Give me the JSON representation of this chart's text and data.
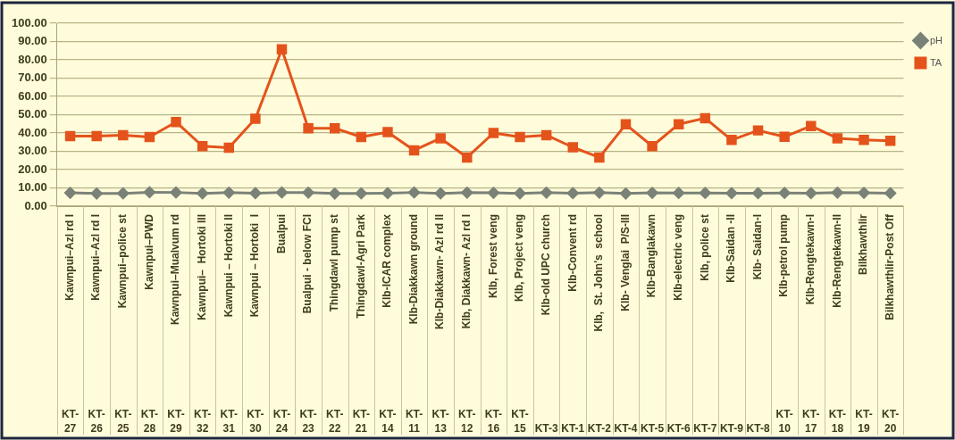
{
  "chart_data": {
    "type": "line",
    "categories": [
      "Kawnpui–Azl rd I\nKT-27",
      "Kawnpui–Azl rd I\nKT-26",
      "Kawnpui–police st\nKT-25",
      "Kawnpui–PWD\nKT-28",
      "Kawnpui–Mualvum rd\nKT-29",
      "Kawnpui–  Hortoki III\nKT-32",
      "Kawnpui – Hortoki II\nKT-31",
      "Kawnpui – Hortoki  I\nKT-30",
      "Bualpui\nKT-24",
      "Bualpui - below FCI\nKT-23",
      "Thingdawl pump st\nKT-22",
      "Thingdawl-Agri Park\nKT-21",
      "Klb-ICAR complex\nKT-14",
      "Klb-Diakkawn ground\nKT-11",
      "Klb-Diakkawn- Azl rd II\nKT-13",
      "Klb, Diakkawn- Azl rd I\nKT-12",
      "Klb, Forest veng\nKT-16",
      "Klb, Project veng\nKT-15",
      "Klb-old UPC church\nKT-3",
      "Klb-Convent rd\nKT-1",
      "Klb,  St. John's  school\nKT-2",
      "Klb- Venglai  P/S-III\nKT-4",
      "Klb-Banglakawn\nKT-5",
      "Klb-electric veng\nKT-6",
      "Klb, police st\nKT-7",
      "Klb-Saidan -II\nKT-9",
      "Klb- Saidan-I\nKT-8",
      "Klb-petrol pump\nKT-10",
      "Klb-Rengtekawn-I\nKT-17",
      "Klb-Rengtekawn-II\nKT-18",
      "Bilkhawthlir\nKT-19",
      "Bilkhawthlir-Post Off\nKT-20"
    ],
    "series": [
      {
        "name": "pH",
        "color": "#7a8278",
        "marker": "diamond",
        "values": [
          7.3,
          6.9,
          7.0,
          7.6,
          7.5,
          7.0,
          7.4,
          7.1,
          7.5,
          7.4,
          6.9,
          7.0,
          7.1,
          7.5,
          7.0,
          7.4,
          7.3,
          7.0,
          7.4,
          7.1,
          7.4,
          6.9,
          7.3,
          7.2,
          7.2,
          7.1,
          7.1,
          7.2,
          7.1,
          7.4,
          7.3,
          7.1
        ]
      },
      {
        "name": "TA",
        "color": "#e4531b",
        "marker": "square",
        "values": [
          38.3,
          38.3,
          38.8,
          37.8,
          46.0,
          32.8,
          31.9,
          47.8,
          85.7,
          42.6,
          42.6,
          37.8,
          40.5,
          30.5,
          37.1,
          26.6,
          40.0,
          37.8,
          38.8,
          32.2,
          26.6,
          44.7,
          32.8,
          44.8,
          48.1,
          36.2,
          41.4,
          37.9,
          43.8,
          37.1,
          36.2,
          35.7
        ]
      }
    ],
    "ylim": [
      0,
      100
    ],
    "yticks": [
      {
        "value": 0,
        "label": "0.00"
      },
      {
        "value": 10,
        "label": "10.00"
      },
      {
        "value": 20,
        "label": "20.00"
      },
      {
        "value": 30,
        "label": "30.00"
      },
      {
        "value": 40,
        "label": "40.00"
      },
      {
        "value": 50,
        "label": "50.00"
      },
      {
        "value": 60,
        "label": "60.00"
      },
      {
        "value": 70,
        "label": "70.00"
      },
      {
        "value": 80,
        "label": "80.00"
      },
      {
        "value": 90,
        "label": "90.00"
      },
      {
        "value": 100,
        "label": "100.00"
      }
    ],
    "grid": "y",
    "legend": "right",
    "line_style": "solid"
  }
}
